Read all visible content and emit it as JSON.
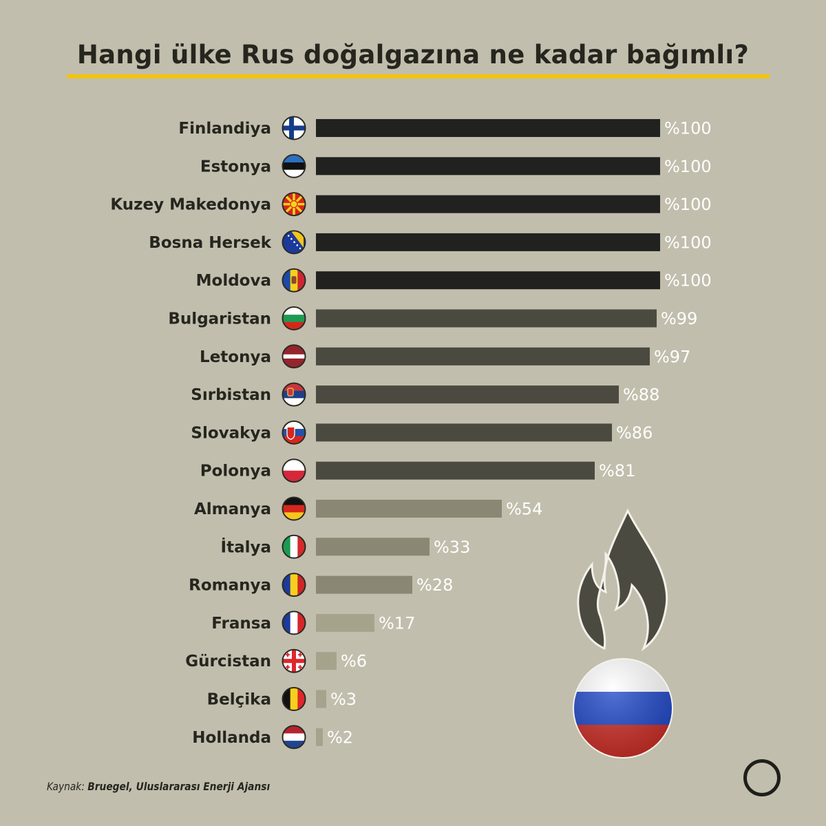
{
  "title": "Hangi ülke Rus doğalgazına ne kadar bağımlı?",
  "source": {
    "label": "Kaynak:",
    "text": "Bruegel, Uluslararası Enerji Ajansı"
  },
  "colors": {
    "background": "#c2bead",
    "accent_underline": "#f2c40f",
    "tier_100": "#212120",
    "tier_80_99": "#4b4a40",
    "tier_25_60": "#8a8874",
    "tier_0_20": "#a6a38d"
  },
  "icons": [
    "russia-flag-icon",
    "flame-icon",
    "brand-ring-logo-icon"
  ],
  "chart_data": {
    "type": "bar",
    "orientation": "horizontal",
    "value_prefix": "%",
    "xlim": [
      0,
      100
    ],
    "grid": false,
    "legend": "none",
    "categories": [
      "Finlandiya",
      "Estonya",
      "Kuzey Makedonya",
      "Bosna Hersek",
      "Moldova",
      "Bulgaristan",
      "Letonya",
      "Sırbistan",
      "Slovakya",
      "Polonya",
      "Almanya",
      "İtalya",
      "Romanya",
      "Fransa",
      "Gürcistan",
      "Belçika",
      "Hollanda"
    ],
    "values": [
      100,
      100,
      100,
      100,
      100,
      99,
      97,
      88,
      86,
      81,
      54,
      33,
      28,
      17,
      6,
      3,
      2
    ],
    "value_labels": [
      "%100",
      "%100",
      "%100",
      "%100",
      "%100",
      "%99",
      "%97",
      "%88",
      "%86",
      "%81",
      "%54",
      "%33",
      "%28",
      "%17",
      "%6",
      "%3",
      "%2"
    ],
    "flags": [
      "finland",
      "estonia",
      "north-macedonia",
      "bosnia",
      "moldova",
      "bulgaria",
      "latvia",
      "serbia",
      "slovakia",
      "poland",
      "germany",
      "italy",
      "romania",
      "france",
      "georgia",
      "belgium",
      "netherlands"
    ]
  }
}
